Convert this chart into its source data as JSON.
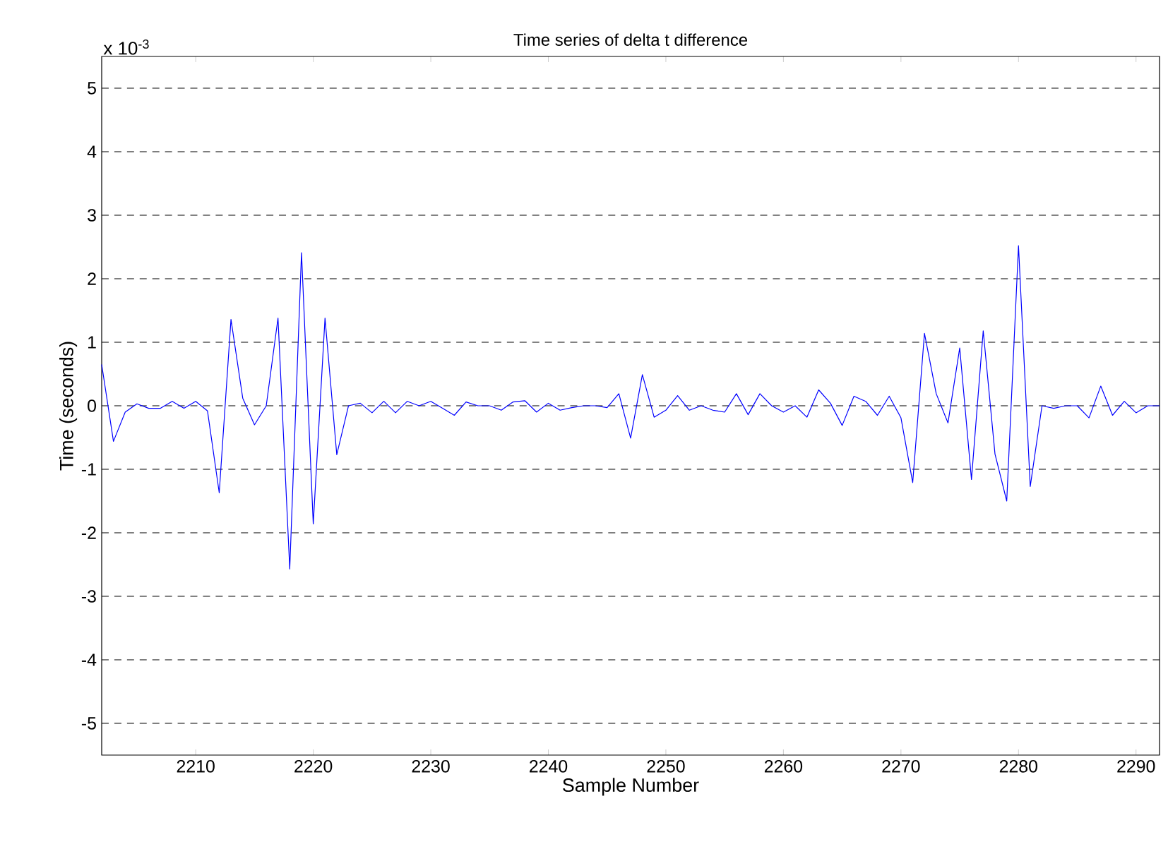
{
  "chart_data": {
    "type": "line",
    "title": "Time series of delta t difference",
    "xlabel": "Sample Number",
    "ylabel": "Time (seconds)",
    "annotations": [
      "x 10$^{-3}$"
    ],
    "x": [
      2202,
      2203,
      2204,
      2205,
      2206,
      2207,
      2208,
      2209,
      2210,
      2211,
      2212,
      2213,
      2214,
      2215,
      2216,
      2217,
      2218,
      2219,
      2220,
      2221,
      2222,
      2223,
      2224,
      2225,
      2226,
      2227,
      2228,
      2229,
      2230,
      2231,
      2232,
      2233,
      2234,
      2235,
      2236,
      2237,
      2238,
      2239,
      2240,
      2241,
      2242,
      2243,
      2244,
      2245,
      2246,
      2247,
      2248,
      2249,
      2250,
      2251,
      2252,
      2253,
      2254,
      2255,
      2256,
      2257,
      2258,
      2259,
      2260,
      2261,
      2262,
      2263,
      2264,
      2265,
      2266,
      2267,
      2268,
      2269,
      2270,
      2271,
      2272,
      2273,
      2274,
      2275,
      2276,
      2277,
      2278,
      2279,
      2280,
      2281,
      2282,
      2283,
      2284,
      2285,
      2286,
      2287,
      2288,
      2289,
      2290,
      2291,
      2292
    ],
    "series": [
      {
        "color": "#0000ff",
        "values": [
          0.65,
          -0.56,
          -0.1,
          0.03,
          -0.04,
          -0.04,
          0.07,
          -0.04,
          0.07,
          -0.08,
          -1.37,
          1.36,
          0.12,
          -0.3,
          0,
          1.38,
          -2.57,
          2.41,
          -1.86,
          1.38,
          -0.77,
          0,
          0.04,
          -0.11,
          0.07,
          -0.11,
          0.07,
          0,
          0.07,
          -0.04,
          -0.15,
          0.06,
          0,
          0,
          -0.07,
          0.06,
          0.08,
          -0.1,
          0.04,
          -0.07,
          -0.03,
          0,
          0,
          -0.03,
          0.19,
          -0.51,
          0.49,
          -0.18,
          -0.07,
          0.16,
          -0.07,
          0,
          -0.07,
          -0.1,
          0.19,
          -0.14,
          0.19,
          0,
          -0.1,
          0,
          -0.18,
          0.25,
          0.04,
          -0.31,
          0.15,
          0.07,
          -0.15,
          0.15,
          -0.19,
          -1.21,
          1.14,
          0.19,
          -0.27,
          0.91,
          -1.16,
          1.18,
          -0.76,
          -1.5,
          2.52,
          -1.27,
          0,
          -0.04,
          0,
          0,
          -0.19,
          0.31,
          -0.15,
          0.07,
          -0.11,
          0,
          0
        ]
      }
    ],
    "xlim": [
      2202,
      2292
    ],
    "ylim": [
      -5.5,
      5.5
    ],
    "xticks": [
      2210,
      2220,
      2230,
      2240,
      2250,
      2260,
      2270,
      2280,
      2290
    ],
    "yticks": [
      -5,
      -4,
      -3,
      -2,
      -1,
      0,
      1,
      2,
      3,
      4,
      5
    ],
    "grid": "y",
    "marker": "none",
    "line_style": "solid"
  }
}
